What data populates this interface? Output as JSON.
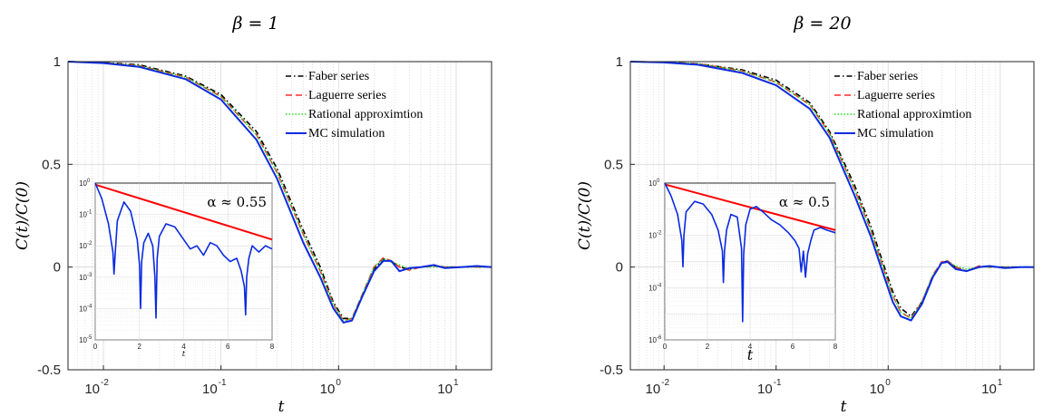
{
  "colors": {
    "faber": "#000000",
    "laguerre": "#ff2a2a",
    "rational": "#22dd22",
    "mc": "#0a2ae0",
    "fit_line": "#ff0000",
    "grid": "#d9d9d9",
    "minor_grid": "#c8c8c8"
  },
  "chart_data": [
    {
      "type": "line",
      "title": "β = 1",
      "xlabel": "t",
      "ylabel": "C(t)/C(0)",
      "xscale": "log",
      "xlim": [
        0.005,
        20
      ],
      "ylim": [
        -0.5,
        1
      ],
      "yticks": [
        "-0.5",
        "0",
        "0.5",
        "1"
      ],
      "xticks": [
        {
          "base": "10",
          "exp": "-2"
        },
        {
          "base": "10",
          "exp": "-1"
        },
        {
          "base": "10",
          "exp": "0"
        },
        {
          "base": "10",
          "exp": "1"
        }
      ],
      "grid": true,
      "legend_position": "top-right",
      "series": [
        {
          "name": "Faber series",
          "style": "dash-dot",
          "x": [
            0.005,
            0.01,
            0.02,
            0.05,
            0.1,
            0.2,
            0.3,
            0.5,
            0.7,
            0.9,
            1.1,
            1.3,
            1.6,
            2.0,
            2.4,
            2.8,
            3.3,
            4.0,
            5.0,
            6.5,
            8.0,
            11,
            15,
            20
          ],
          "y": [
            1.0,
            0.995,
            0.985,
            0.93,
            0.84,
            0.66,
            0.48,
            0.18,
            0.0,
            -0.17,
            -0.25,
            -0.25,
            -0.14,
            -0.01,
            0.04,
            0.03,
            0.0,
            -0.01,
            0.0,
            0.005,
            0.0,
            0.0,
            0.0,
            0.0
          ]
        },
        {
          "name": "Laguerre series",
          "style": "dashed",
          "x": [
            0.005,
            0.01,
            0.02,
            0.05,
            0.1,
            0.2,
            0.3,
            0.5,
            0.7,
            0.9,
            1.1,
            1.3,
            1.6,
            2.0,
            2.4,
            2.8,
            3.3,
            4.0,
            5.0,
            6.5,
            8.0,
            11,
            15,
            20
          ],
          "y": [
            1.0,
            0.995,
            0.98,
            0.925,
            0.83,
            0.645,
            0.46,
            0.16,
            -0.02,
            -0.18,
            -0.26,
            -0.25,
            -0.13,
            0.0,
            0.045,
            0.03,
            0.0,
            -0.015,
            0.0,
            0.005,
            0.0,
            0.0,
            0.0,
            0.0
          ]
        },
        {
          "name": "Rational approximtion",
          "style": "dotted",
          "x": [
            0.005,
            0.01,
            0.02,
            0.05,
            0.1,
            0.2,
            0.3,
            0.5,
            0.7,
            0.9,
            1.1,
            1.3,
            1.6,
            2.0,
            2.4,
            2.8,
            3.3,
            4.0,
            5.0,
            6.5,
            8.0,
            11,
            15,
            20
          ],
          "y": [
            1.0,
            0.995,
            0.98,
            0.925,
            0.83,
            0.645,
            0.46,
            0.16,
            -0.02,
            -0.18,
            -0.26,
            -0.25,
            -0.13,
            0.0,
            0.04,
            0.025,
            0.01,
            -0.01,
            0.0,
            0.0,
            0.0,
            0.0,
            0.0,
            0.0
          ]
        },
        {
          "name": "MC simulation",
          "style": "solid",
          "x": [
            0.005,
            0.01,
            0.02,
            0.05,
            0.1,
            0.2,
            0.3,
            0.5,
            0.7,
            0.9,
            1.1,
            1.3,
            1.6,
            2.0,
            2.4,
            2.8,
            3.3,
            4.0,
            5.0,
            6.5,
            8.0,
            11,
            15,
            20
          ],
          "y": [
            1.0,
            0.993,
            0.975,
            0.915,
            0.815,
            0.62,
            0.43,
            0.12,
            -0.05,
            -0.2,
            -0.27,
            -0.26,
            -0.14,
            -0.02,
            0.03,
            0.03,
            -0.02,
            -0.005,
            0.0,
            0.01,
            -0.005,
            0.0,
            0.005,
            0.0
          ]
        }
      ],
      "inset": {
        "xlim": [
          0,
          8
        ],
        "ylim_exp": [
          -5,
          0
        ],
        "xticks": [
          "0",
          "2",
          "4",
          "6",
          "8"
        ],
        "yticks": [
          {
            "base": "10",
            "exp": "0"
          },
          {
            "base": "10",
            "exp": "-1"
          },
          {
            "base": "10",
            "exp": "-2"
          },
          {
            "base": "10",
            "exp": "-3"
          },
          {
            "base": "10",
            "exp": "-4"
          },
          {
            "base": "10",
            "exp": "-5"
          }
        ],
        "xlabel": "t",
        "annotation": "α ≈ 0.55",
        "fit_line": {
          "x": [
            0,
            8
          ],
          "log10_y": [
            -0.05,
            -1.8
          ]
        },
        "mc_trace": {
          "x": [
            0,
            0.3,
            0.6,
            0.8,
            0.85,
            0.9,
            1.0,
            1.3,
            1.6,
            1.9,
            2.0,
            2.05,
            2.1,
            2.2,
            2.4,
            2.6,
            2.7,
            2.75,
            2.8,
            2.9,
            3.2,
            3.6,
            4.0,
            4.3,
            4.6,
            4.9,
            5.2,
            5.5,
            5.8,
            6.1,
            6.4,
            6.6,
            6.75,
            6.8,
            6.85,
            6.95,
            7.1,
            7.4,
            7.7,
            8.0
          ],
          "log10_y": [
            0,
            -0.5,
            -1.3,
            -2.2,
            -2.9,
            -2.3,
            -1.2,
            -0.6,
            -0.9,
            -1.8,
            -2.6,
            -4.0,
            -2.5,
            -1.9,
            -1.6,
            -2.0,
            -3.0,
            -4.3,
            -2.4,
            -1.7,
            -1.3,
            -1.4,
            -1.8,
            -2.1,
            -2.0,
            -2.3,
            -1.9,
            -2.0,
            -2.3,
            -2.5,
            -2.4,
            -2.8,
            -3.3,
            -4.2,
            -3.0,
            -2.4,
            -2.0,
            -2.2,
            -2.0,
            -2.1
          ]
        }
      }
    },
    {
      "type": "line",
      "title": "β = 20",
      "xlabel": "t",
      "ylabel": "C(t)/C(0)",
      "xscale": "log",
      "xlim": [
        0.005,
        20
      ],
      "ylim": [
        -0.5,
        1
      ],
      "yticks": [
        "-0.5",
        "0",
        "0.5",
        "1"
      ],
      "xticks": [
        {
          "base": "10",
          "exp": "-2"
        },
        {
          "base": "10",
          "exp": "-1"
        },
        {
          "base": "10",
          "exp": "0"
        },
        {
          "base": "10",
          "exp": "1"
        }
      ],
      "grid": true,
      "legend_position": "top-right",
      "series": [
        {
          "name": "Faber series",
          "style": "dash-dot",
          "x": [
            0.005,
            0.01,
            0.02,
            0.05,
            0.1,
            0.2,
            0.3,
            0.5,
            0.7,
            0.9,
            1.1,
            1.3,
            1.6,
            2.0,
            2.5,
            3.0,
            3.4,
            4.0,
            5.0,
            6.5,
            8.0,
            11,
            15,
            20
          ],
          "y": [
            1.0,
            0.997,
            0.99,
            0.96,
            0.91,
            0.8,
            0.66,
            0.4,
            0.2,
            0.02,
            -0.12,
            -0.2,
            -0.24,
            -0.17,
            -0.05,
            0.02,
            0.03,
            0.0,
            -0.02,
            0.005,
            0.0,
            0.0,
            0.0,
            0.0
          ]
        },
        {
          "name": "Laguerre series",
          "style": "dashed",
          "x": [
            0.005,
            0.01,
            0.02,
            0.05,
            0.1,
            0.2,
            0.3,
            0.5,
            0.7,
            0.9,
            1.1,
            1.3,
            1.6,
            2.0,
            2.5,
            3.0,
            3.4,
            4.0,
            5.0,
            6.5,
            8.0,
            11,
            15,
            20
          ],
          "y": [
            1.0,
            0.997,
            0.99,
            0.955,
            0.9,
            0.79,
            0.65,
            0.38,
            0.18,
            0.0,
            -0.14,
            -0.22,
            -0.25,
            -0.17,
            -0.04,
            0.025,
            0.03,
            0.0,
            -0.02,
            0.005,
            0.0,
            0.0,
            0.0,
            0.0
          ]
        },
        {
          "name": "Rational approximtion",
          "style": "dotted",
          "x": [
            0.005,
            0.01,
            0.02,
            0.05,
            0.1,
            0.2,
            0.3,
            0.5,
            0.7,
            0.9,
            1.1,
            1.3,
            1.6,
            2.0,
            2.5,
            3.0,
            3.4,
            4.0,
            5.0,
            6.5,
            8.0,
            11,
            15,
            20
          ],
          "y": [
            1.0,
            0.997,
            0.99,
            0.955,
            0.9,
            0.79,
            0.65,
            0.38,
            0.18,
            0.0,
            -0.14,
            -0.22,
            -0.25,
            -0.17,
            -0.04,
            0.02,
            0.025,
            0.005,
            -0.01,
            0.0,
            0.0,
            0.0,
            0.0,
            0.0
          ]
        },
        {
          "name": "MC simulation",
          "style": "solid",
          "x": [
            0.005,
            0.01,
            0.02,
            0.05,
            0.1,
            0.2,
            0.3,
            0.5,
            0.7,
            0.9,
            1.1,
            1.3,
            1.6,
            2.0,
            2.5,
            3.0,
            3.4,
            4.0,
            5.0,
            6.5,
            8.0,
            11,
            15,
            20
          ],
          "y": [
            1.0,
            0.996,
            0.985,
            0.945,
            0.885,
            0.77,
            0.63,
            0.35,
            0.15,
            -0.03,
            -0.17,
            -0.24,
            -0.26,
            -0.18,
            -0.05,
            0.02,
            0.025,
            -0.01,
            -0.02,
            0.0,
            0.005,
            -0.005,
            0.0,
            0.0
          ]
        }
      ],
      "inset": {
        "xlim": [
          0,
          8
        ],
        "ylim_exp": [
          -6,
          0
        ],
        "xticks": [
          "0",
          "2",
          "4",
          "6",
          "8"
        ],
        "yticks": [
          {
            "base": "10",
            "exp": "0"
          },
          {
            "base": "10",
            "exp": "-2"
          },
          {
            "base": "10",
            "exp": "-4"
          },
          {
            "base": "10",
            "exp": "-6"
          }
        ],
        "xlabel": "t",
        "annotation": "α ≈ 0.5",
        "fit_line": {
          "x": [
            0,
            8
          ],
          "log10_y": [
            -0.05,
            -1.8
          ]
        },
        "mc_trace": {
          "x": [
            0,
            0.3,
            0.6,
            0.8,
            0.85,
            0.9,
            1.0,
            1.4,
            1.8,
            2.2,
            2.5,
            2.7,
            2.75,
            2.8,
            2.9,
            3.1,
            3.4,
            3.6,
            3.65,
            3.7,
            3.8,
            4.0,
            4.3,
            4.6,
            5.0,
            5.4,
            5.8,
            6.1,
            6.3,
            6.4,
            6.5,
            6.6,
            6.7,
            6.85,
            7.0,
            7.3,
            7.6,
            8.0
          ],
          "log10_y": [
            0,
            -0.5,
            -1.2,
            -2.2,
            -3.2,
            -2.0,
            -1.1,
            -0.7,
            -0.8,
            -1.2,
            -1.8,
            -2.6,
            -3.8,
            -2.6,
            -1.8,
            -1.2,
            -1.3,
            -2.5,
            -5.3,
            -2.7,
            -1.6,
            -1.0,
            -0.9,
            -1.1,
            -1.4,
            -1.6,
            -1.9,
            -2.2,
            -2.5,
            -3.4,
            -2.6,
            -3.6,
            -2.7,
            -2.2,
            -1.8,
            -1.7,
            -1.8,
            -1.9
          ]
        }
      }
    }
  ]
}
